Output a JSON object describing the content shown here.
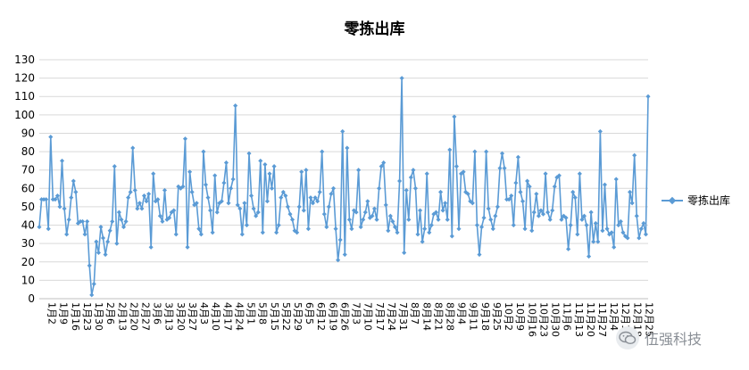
{
  "chart_data": {
    "type": "line",
    "title": "零拣出库",
    "xlabel": "",
    "ylabel": "",
    "ylim": [
      0,
      130
    ],
    "yticks": [
      0,
      10,
      20,
      30,
      40,
      50,
      60,
      70,
      80,
      90,
      100,
      110,
      120,
      130
    ],
    "grid": "horizontal",
    "legend_position": "right",
    "series": [
      {
        "name": "零拣出库",
        "color": "#5b9bd5",
        "values": [
          39,
          54,
          54,
          54,
          38,
          88,
          54,
          54,
          56,
          50,
          75,
          49,
          35,
          43,
          55,
          64,
          58,
          41,
          42,
          42,
          35,
          42,
          18,
          2,
          8,
          31,
          25,
          39,
          33,
          24,
          31,
          37,
          42,
          72,
          30,
          47,
          43,
          39,
          42,
          55,
          58,
          82,
          59,
          49,
          52,
          49,
          56,
          53,
          57,
          28,
          68,
          53,
          54,
          45,
          42,
          59,
          43,
          44,
          47,
          48,
          35,
          61,
          60,
          61,
          87,
          28,
          69,
          58,
          51,
          52,
          38,
          35,
          80,
          62,
          55,
          48,
          36,
          67,
          47,
          52,
          53,
          63,
          74,
          52,
          60,
          65,
          105,
          51,
          49,
          35,
          52,
          40,
          79,
          56,
          49,
          45,
          47,
          75,
          36,
          73,
          53,
          68,
          60,
          72,
          36,
          40,
          55,
          58,
          56,
          50,
          46,
          43,
          37,
          36,
          50,
          69,
          48,
          70,
          38,
          55,
          52,
          55,
          53,
          58,
          80,
          46,
          39,
          50,
          57,
          60,
          38,
          21,
          32,
          91,
          24,
          82,
          43,
          38,
          48,
          47,
          70,
          39,
          43,
          47,
          53,
          44,
          45,
          49,
          43,
          60,
          72,
          74,
          51,
          37,
          45,
          42,
          39,
          36,
          64,
          120,
          25,
          59,
          43,
          66,
          70,
          60,
          35,
          48,
          31,
          38,
          68,
          36,
          40,
          46,
          47,
          43,
          58,
          48,
          52,
          43,
          81,
          34,
          99,
          72,
          38,
          68,
          69,
          58,
          57,
          53,
          52,
          80,
          40,
          24,
          39,
          44,
          80,
          49,
          43,
          38,
          45,
          50,
          71,
          79,
          71,
          54,
          54,
          56,
          40,
          63,
          77,
          58,
          53,
          38,
          64,
          61,
          37,
          47,
          57,
          45,
          48,
          46,
          68,
          47,
          43,
          48,
          61,
          66,
          67,
          43,
          45,
          44,
          27,
          40,
          58,
          55,
          35,
          68,
          43,
          45,
          40,
          23,
          47,
          31,
          41,
          31,
          91,
          37,
          62,
          38,
          35,
          36,
          28,
          65,
          40,
          42,
          36,
          34,
          33,
          58,
          52,
          78,
          45,
          33,
          38,
          41,
          35,
          110
        ]
      }
    ],
    "x_tick_labels": [
      "1月2",
      "1月9",
      "1月16",
      "1月23",
      "1月30",
      "2月6",
      "2月13",
      "2月20",
      "2月27",
      "3月6",
      "3月13",
      "3月20",
      "3月27",
      "4月3",
      "4月10",
      "4月17",
      "4月24",
      "5月1",
      "5月8",
      "5月15",
      "5月22",
      "5月29",
      "6月5",
      "6月12",
      "6月19",
      "6月26",
      "7月3",
      "7月10",
      "7月17",
      "7月24",
      "7月31",
      "8月7",
      "8月14",
      "8月21",
      "8月28",
      "9月4",
      "9月11",
      "9月18",
      "9月25",
      "10月2",
      "10月9",
      "10月16",
      "10月23",
      "10月30",
      "11月6",
      "11月13",
      "11月20",
      "11月27",
      "12月4",
      "12月11",
      "12月18",
      "12月25"
    ]
  },
  "watermark": {
    "icon": "wechat-icon",
    "text": "伍强科技"
  }
}
